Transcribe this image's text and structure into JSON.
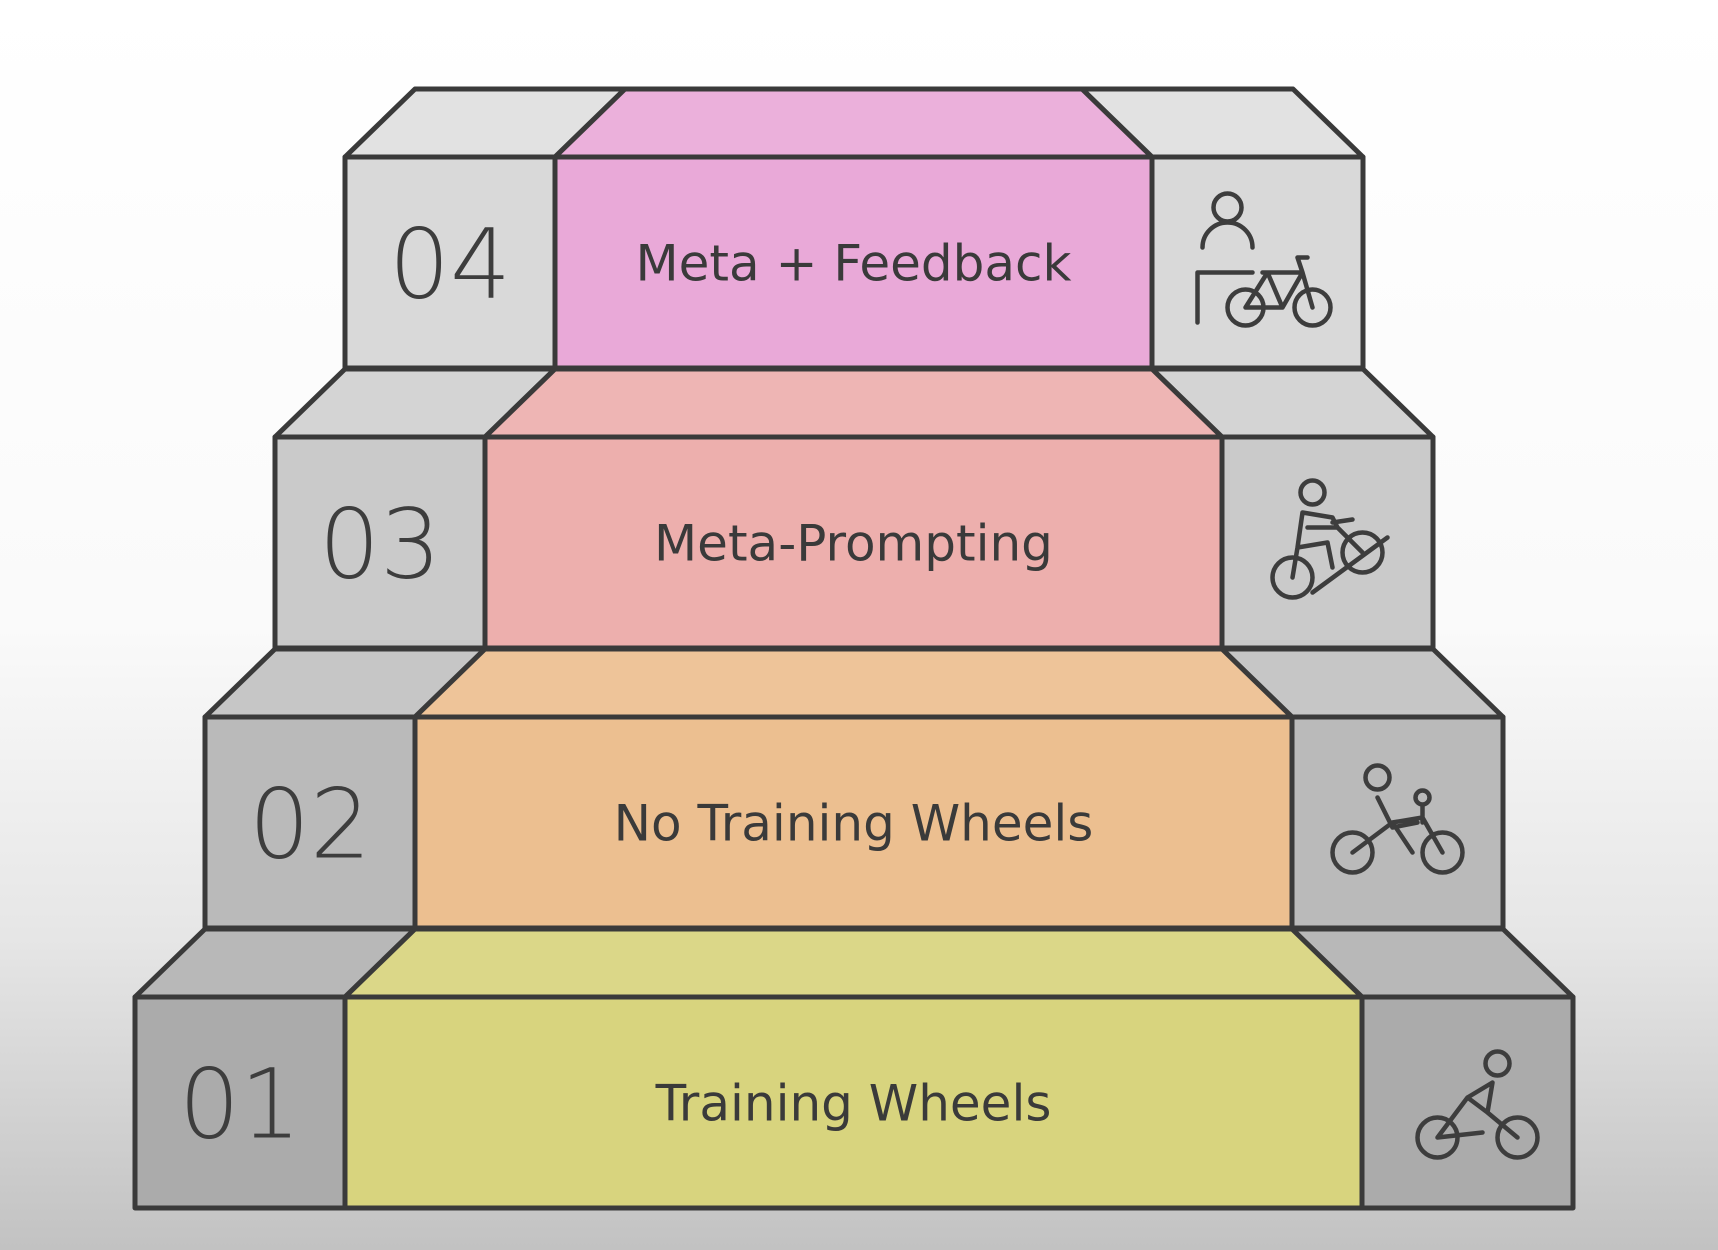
{
  "steps": [
    {
      "number": "01",
      "label": "Training Wheels",
      "icon": "cyclist-icon",
      "color": "#d8d47e"
    },
    {
      "number": "02",
      "label": "No Training Wheels",
      "icon": "cyclist-with-helper-icon",
      "color": "#ecbf90"
    },
    {
      "number": "03",
      "label": "Meta-Prompting",
      "icon": "uphill-cyclist-icon",
      "color": "#edafad"
    },
    {
      "number": "04",
      "label": "Meta + Feedback",
      "icon": "coach-with-bicycle-icon",
      "color": "#e9a9d8"
    }
  ],
  "colors": {
    "outline": "#3a3a3a",
    "gray_light": "#d9d9d9",
    "gray_dark": "#a6a6a6"
  }
}
